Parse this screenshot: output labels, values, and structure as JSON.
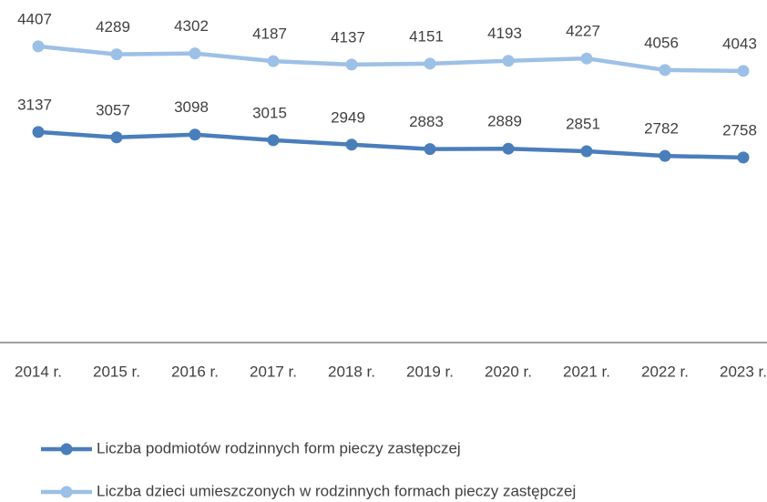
{
  "chart_data": {
    "type": "line",
    "categories": [
      "2014 r.",
      "2015 r.",
      "2016 r.",
      "2017 r.",
      "2018 r.",
      "2019 r.",
      "2020 r.",
      "2021 r.",
      "2022 r.",
      "2023 r."
    ],
    "series": [
      {
        "name": "Liczba podmiotów rodzinnych form pieczy zastępczej",
        "color": "#4a7ebb",
        "values": [
          3137,
          3057,
          3098,
          3015,
          2949,
          2883,
          2889,
          2851,
          2782,
          2758
        ]
      },
      {
        "name": "Liczba dzieci umieszczonych w rodzinnych formach pieczy zastępczej",
        "color": "#9dc0e6",
        "values": [
          4407,
          4289,
          4302,
          4187,
          4137,
          4151,
          4193,
          4227,
          4056,
          4043
        ]
      }
    ],
    "ylim": [
      0,
      5000
    ]
  }
}
